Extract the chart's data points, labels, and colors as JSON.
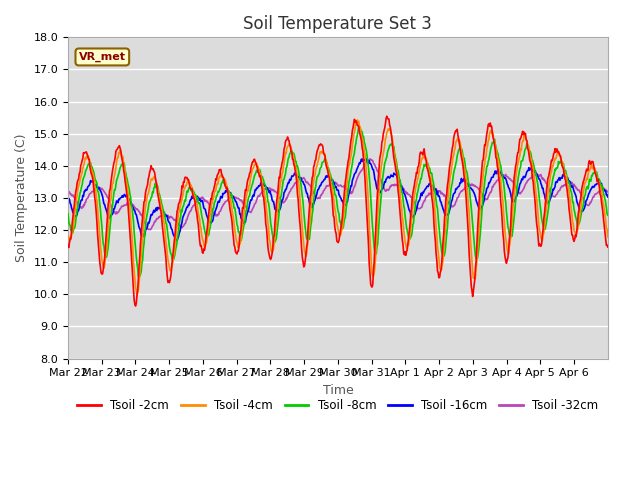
{
  "title": "Soil Temperature Set 3",
  "xlabel": "Time",
  "ylabel": "Soil Temperature (C)",
  "ylim": [
    8.0,
    18.0
  ],
  "yticks": [
    8.0,
    9.0,
    10.0,
    11.0,
    12.0,
    13.0,
    14.0,
    15.0,
    16.0,
    17.0,
    18.0
  ],
  "xtick_labels": [
    "Mar 22",
    "Mar 23",
    "Mar 24",
    "Mar 25",
    "Mar 26",
    "Mar 27",
    "Mar 28",
    "Mar 29",
    "Mar 30",
    "Mar 31",
    "Apr 1",
    "Apr 2",
    "Apr 3",
    "Apr 4",
    "Apr 5",
    "Apr 6"
  ],
  "annotation": "VR_met",
  "lines": {
    "Tsoil -2cm": {
      "color": "#FF0000",
      "lw": 1.2
    },
    "Tsoil -4cm": {
      "color": "#FF8C00",
      "lw": 1.2
    },
    "Tsoil -8cm": {
      "color": "#00CC00",
      "lw": 1.2
    },
    "Tsoil -16cm": {
      "color": "#0000FF",
      "lw": 1.2
    },
    "Tsoil -32cm": {
      "color": "#BB44BB",
      "lw": 1.2
    }
  },
  "bg_color": "#DCDCDC",
  "grid_color": "#FFFFFF",
  "title_fontsize": 12,
  "label_fontsize": 9,
  "tick_fontsize": 8
}
